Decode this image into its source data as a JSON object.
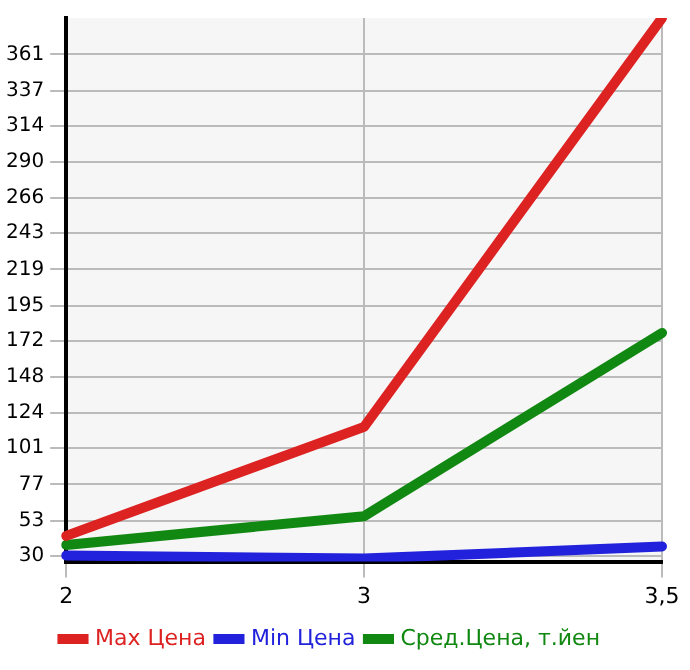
{
  "chart_data": {
    "type": "line",
    "categories": [
      "2",
      "3",
      "3,5"
    ],
    "series": [
      {
        "name": "Max Цена",
        "color": "#dd2222",
        "values": [
          43,
          115,
          385
        ]
      },
      {
        "name": "Min Цена",
        "color": "#2222dd",
        "values": [
          30,
          28,
          36
        ]
      },
      {
        "name": "Сред.Цена, т.йен",
        "color": "#118811",
        "values": [
          37,
          56,
          177
        ]
      }
    ],
    "ylim": [
      26,
      385
    ],
    "yticks": [
      30,
      53,
      77,
      101,
      124,
      148,
      172,
      195,
      219,
      243,
      266,
      290,
      314,
      337,
      361
    ],
    "grid": true,
    "legend": "bottom",
    "marker": "none",
    "line_style": "solid"
  }
}
